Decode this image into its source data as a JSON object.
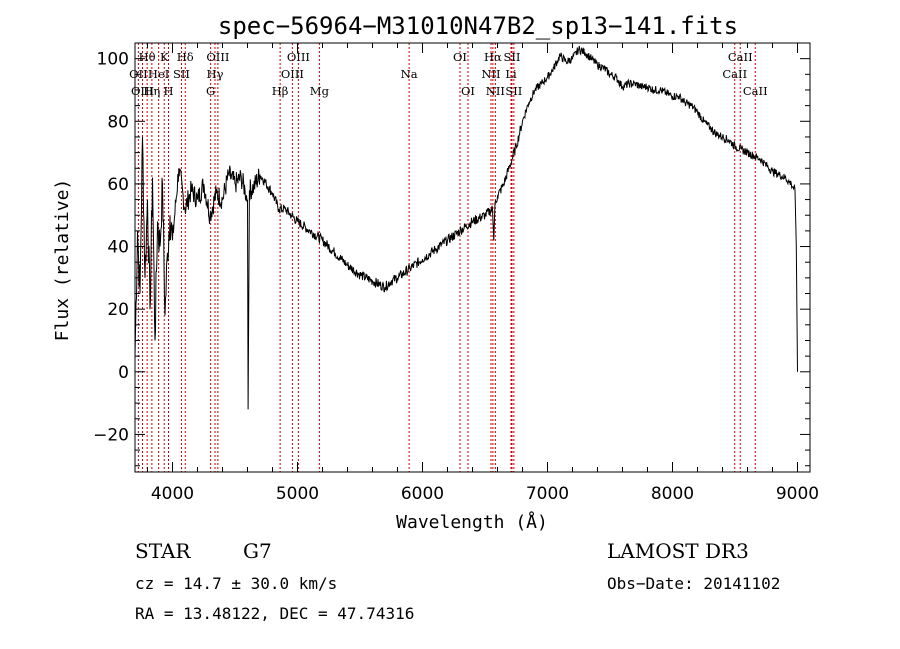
{
  "chart_data": {
    "type": "line",
    "title": "spec−56964−M31010N47B2_sp13−141.fits",
    "xlabel": "Wavelength (Å)",
    "ylabel": "Flux (relative)",
    "xlim": [
      3700,
      9100
    ],
    "ylim": [
      -32,
      105
    ],
    "x_ticks": [
      4000,
      5000,
      6000,
      7000,
      8000,
      9000
    ],
    "x_tick_labels": [
      "4000",
      "5000",
      "6000",
      "7000",
      "8000",
      "9000"
    ],
    "y_ticks": [
      -20,
      0,
      20,
      40,
      60,
      80,
      100
    ],
    "y_tick_labels": [
      "−20",
      "0",
      "20",
      "40",
      "60",
      "80",
      "100"
    ],
    "series": [
      {
        "name": "flux",
        "x": [
          3700,
          3720,
          3740,
          3760,
          3780,
          3800,
          3820,
          3840,
          3860,
          3880,
          3900,
          3920,
          3940,
          3960,
          3980,
          4000,
          4050,
          4100,
          4150,
          4200,
          4250,
          4300,
          4350,
          4400,
          4450,
          4500,
          4550,
          4580,
          4600,
          4605,
          4615,
          4650,
          4700,
          4750,
          4800,
          4850,
          4900,
          4950,
          5000,
          5100,
          5200,
          5300,
          5400,
          5500,
          5600,
          5700,
          5750,
          5800,
          5900,
          6000,
          6100,
          6200,
          6300,
          6400,
          6500,
          6560,
          6570,
          6580,
          6600,
          6650,
          6700,
          6750,
          6800,
          6850,
          6900,
          6950,
          7000,
          7050,
          7100,
          7150,
          7200,
          7250,
          7300,
          7350,
          7400,
          7450,
          7500,
          7550,
          7600,
          7650,
          7700,
          7750,
          7800,
          7850,
          7900,
          7950,
          8000,
          8050,
          8100,
          8150,
          8200,
          8250,
          8300,
          8350,
          8400,
          8450,
          8500,
          8550,
          8600,
          8650,
          8700,
          8750,
          8800,
          8850,
          8900,
          8950,
          8980,
          8990,
          9000
        ],
        "y": [
          5,
          45,
          25,
          75,
          30,
          55,
          20,
          62,
          10,
          48,
          40,
          60,
          18,
          38,
          50,
          42,
          65,
          52,
          58,
          55,
          60,
          50,
          57,
          55,
          63,
          60,
          62,
          58,
          55,
          -12,
          58,
          59,
          63,
          60,
          57,
          52,
          52,
          50,
          48,
          45,
          42,
          38,
          34,
          31,
          29,
          27,
          29,
          30,
          33,
          36,
          39,
          42,
          45,
          48,
          50,
          52,
          42,
          54,
          56,
          60,
          66,
          72,
          80,
          86,
          90,
          92,
          94,
          97,
          101,
          99,
          100,
          103,
          102,
          100,
          98,
          97,
          95,
          94,
          91,
          92,
          92,
          91,
          91,
          90,
          90,
          89,
          88,
          88,
          86,
          85,
          83,
          80,
          78,
          76,
          75,
          74,
          72,
          71,
          70,
          69,
          68,
          66,
          64,
          63,
          62,
          60,
          58,
          40,
          0
        ]
      }
    ],
    "spectral_lines": [
      {
        "label": "Hθ",
        "x": 3797,
        "row": 1
      },
      {
        "label": "OII",
        "x": 3727,
        "row": 2
      },
      {
        "label": "OIII",
        "x": 3760,
        "row": 3
      },
      {
        "label": "K",
        "x": 3934,
        "row": 1
      },
      {
        "label": "HeI",
        "x": 3889,
        "row": 2
      },
      {
        "label": "Hη",
        "x": 3835,
        "row": 3
      },
      {
        "label": "Hδ",
        "x": 4102,
        "row": 1
      },
      {
        "label": "SII",
        "x": 4072,
        "row": 2
      },
      {
        "label": "H",
        "x": 3968,
        "row": 3
      },
      {
        "label": "OIII",
        "x": 4363,
        "row": 1
      },
      {
        "label": "Hγ",
        "x": 4340,
        "row": 2
      },
      {
        "label": "G",
        "x": 4305,
        "row": 3
      },
      {
        "label": "OIII",
        "x": 5007,
        "row": 1
      },
      {
        "label": "OIII",
        "x": 4959,
        "row": 2
      },
      {
        "label": "Hβ",
        "x": 4861,
        "row": 3
      },
      {
        "label": "Mg",
        "x": 5175,
        "row": 3
      },
      {
        "label": "Na",
        "x": 5893,
        "row": 2
      },
      {
        "label": "OI",
        "x": 6300,
        "row": 1
      },
      {
        "label": "OI",
        "x": 6364,
        "row": 3
      },
      {
        "label": "Hα",
        "x": 6563,
        "row": 1
      },
      {
        "label": "NII",
        "x": 6548,
        "row": 2
      },
      {
        "label": "NII",
        "x": 6583,
        "row": 3
      },
      {
        "label": "SII",
        "x": 6716,
        "row": 1
      },
      {
        "label": "Li",
        "x": 6708,
        "row": 2
      },
      {
        "label": "SII",
        "x": 6731,
        "row": 3
      },
      {
        "label": "CaII",
        "x": 8542,
        "row": 1
      },
      {
        "label": "CaII",
        "x": 8498,
        "row": 2
      },
      {
        "label": "CaII",
        "x": 8662,
        "row": 3
      }
    ]
  },
  "info": {
    "class": "STAR",
    "subclass": "G7",
    "cz_text": "cz = 14.7 ± 30.0 km/s",
    "radec_text": "RA =  13.48122, DEC =  47.74316",
    "survey": "LAMOST DR3",
    "obs_date": "Obs−Date: 20141102"
  },
  "colors": {
    "spectrum": "#000000",
    "line_marker": "#cc0000",
    "axes": "#000000",
    "background": "#ffffff"
  }
}
